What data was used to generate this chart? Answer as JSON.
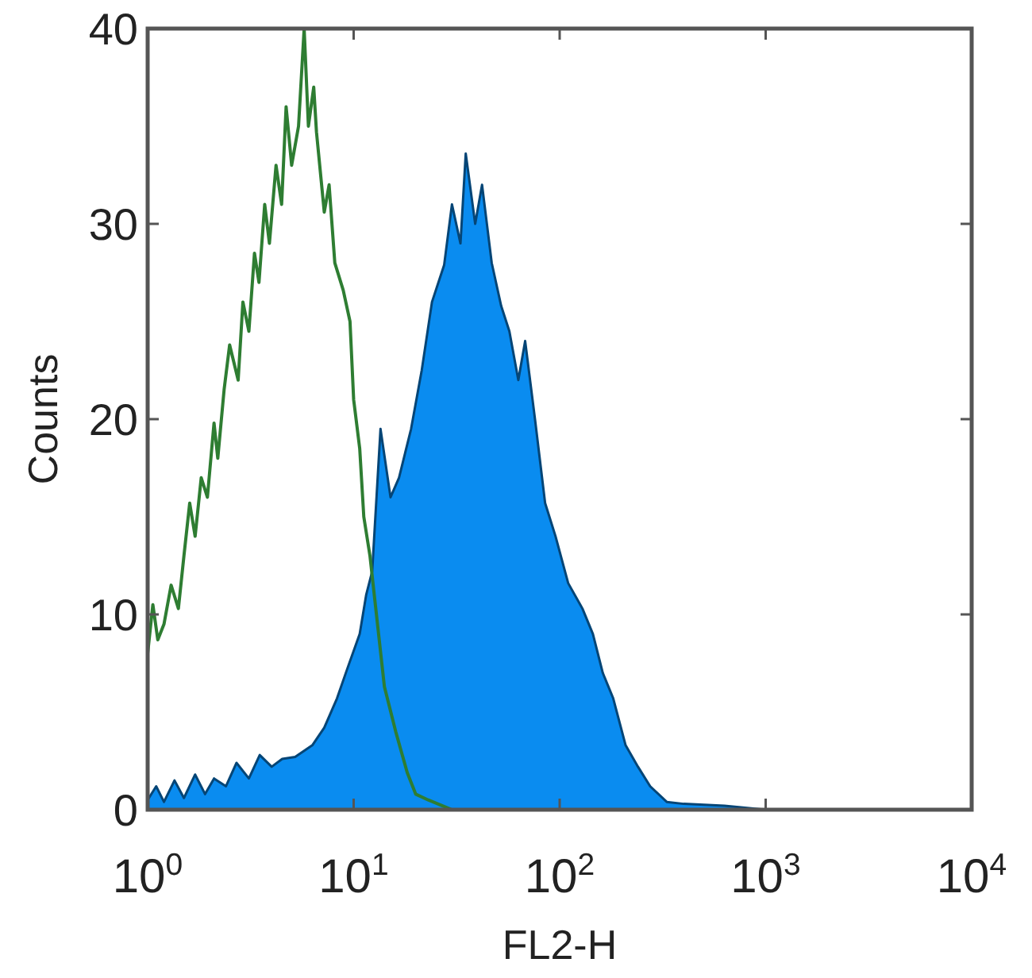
{
  "chart_data": {
    "type": "line",
    "xlabel": "FL2-H",
    "ylabel": "Counts",
    "log": "x",
    "xlim": [
      1,
      10000
    ],
    "xticks": [
      {
        "value": 1,
        "label": "10$^{0}$"
      },
      {
        "value": 10,
        "label": "10$^{1}$"
      },
      {
        "value": 100,
        "label": "10$^{2}$"
      },
      {
        "value": 1000,
        "label": "10$^{3}$"
      },
      {
        "value": 10000,
        "label": "10$^{4}$"
      }
    ],
    "ylim": [
      0,
      40
    ],
    "yticks": [
      0,
      10,
      20,
      30,
      40
    ],
    "grid": false,
    "series": [
      {
        "type": "area",
        "color": "#0a8cf0",
        "x": [
          1,
          1.1,
          1.2,
          1.35,
          1.5,
          1.7,
          1.9,
          2.1,
          2.4,
          2.7,
          3.1,
          3.5,
          4,
          4.5,
          5.2,
          6.3,
          7.2,
          8.3,
          9.3,
          10.7,
          11.5,
          12.3,
          13.5,
          15.1,
          16.6,
          19,
          21.4,
          24,
          27.5,
          30,
          33,
          35,
          38.9,
          42,
          46.8,
          52,
          57,
          63,
          68,
          75.9,
          85,
          95.5,
          110,
          129,
          145,
          162,
          182,
          209,
          240,
          275,
          331,
          400,
          631,
          1000,
          10000
        ],
        "values": [
          0.5,
          1.2,
          0.4,
          1.5,
          0.6,
          1.8,
          0.8,
          1.6,
          1.2,
          2.4,
          1.6,
          2.8,
          2.2,
          2.6,
          2.7,
          3.3,
          4.2,
          5.7,
          7.2,
          9,
          11,
          12.2,
          19.5,
          16,
          17,
          19.5,
          22.5,
          26,
          27.9,
          31,
          29,
          33.6,
          30,
          32,
          28,
          25.8,
          24.5,
          22,
          24,
          20,
          15.7,
          14,
          11.6,
          10.3,
          9,
          7,
          5.7,
          3.3,
          2.2,
          1.2,
          0.4,
          0.3,
          0.2,
          0,
          0
        ]
      },
      {
        "color": "#2e7d32",
        "x": [
          1,
          1.06,
          1.12,
          1.2,
          1.3,
          1.41,
          1.5,
          1.6,
          1.7,
          1.82,
          1.95,
          2.1,
          2.19,
          2.35,
          2.5,
          2.75,
          2.9,
          3.1,
          3.3,
          3.47,
          3.7,
          3.9,
          4.2,
          4.47,
          4.7,
          5,
          5.4,
          5.75,
          6.03,
          6.4,
          6.6,
          7.2,
          7.6,
          8.1,
          8.9,
          9.6,
          10,
          10.7,
          11.2,
          12,
          14.1,
          16,
          18.2,
          20,
          23,
          30,
          50,
          100,
          10000
        ],
        "values": [
          8,
          10.5,
          8.7,
          9.5,
          11.5,
          10.3,
          13,
          15.7,
          14,
          17,
          16,
          19.8,
          18,
          21.5,
          23.8,
          22,
          26,
          24.5,
          28.5,
          27,
          31,
          29,
          33,
          31,
          36,
          33,
          35,
          40,
          35,
          37,
          34.7,
          30.6,
          32,
          28,
          26.6,
          25,
          21,
          18.5,
          15,
          13,
          6.3,
          4,
          1.9,
          0.8,
          0.5,
          0,
          0,
          0,
          0
        ]
      }
    ]
  }
}
